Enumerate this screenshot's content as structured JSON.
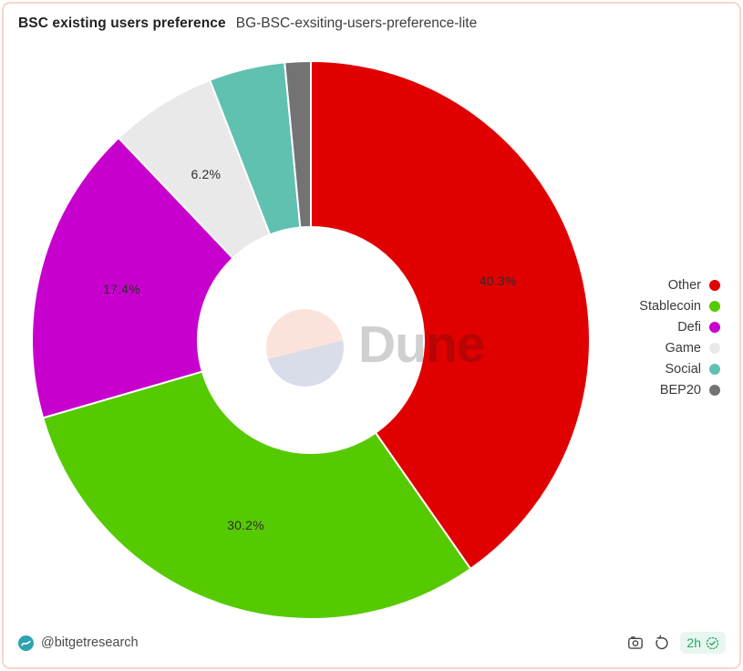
{
  "header": {
    "title": "BSC existing users preference",
    "subtitle": "BG-BSC-exsiting-users-preference-lite"
  },
  "chart_data": {
    "type": "pie",
    "donut": true,
    "title": "BSC existing users preference",
    "legend_position": "right",
    "start_angle_deg": 0,
    "clockwise": true,
    "categories": [
      "Other",
      "Stablecoin",
      "Defi",
      "Game",
      "Social",
      "BEP20"
    ],
    "values": [
      40.3,
      30.2,
      17.4,
      6.2,
      4.4,
      1.5
    ],
    "slices": [
      {
        "name": "Other",
        "value": 40.3,
        "label": "40.3%",
        "color": "#e10000"
      },
      {
        "name": "Stablecoin",
        "value": 30.2,
        "label": "30.2%",
        "color": "#56ca00"
      },
      {
        "name": "Defi",
        "value": 17.4,
        "label": "17.4%",
        "color": "#c800cd"
      },
      {
        "name": "Game",
        "value": 6.2,
        "label": "6.2%",
        "color": "#e9e9e9"
      },
      {
        "name": "Social",
        "value": 4.4,
        "label": "",
        "color": "#60c1b1"
      },
      {
        "name": "BEP20",
        "value": 1.5,
        "label": "",
        "color": "#737373"
      }
    ]
  },
  "watermark": {
    "text": "Dune"
  },
  "footer": {
    "handle": "@bitgetresearch",
    "age_badge": "2h",
    "icons": {
      "left": "bitget-avatar-icon",
      "camera": "camera-icon",
      "refresh": "refresh-icon",
      "badge": "verified-check-icon"
    }
  },
  "colors": {
    "card_border": "#f8d6ce",
    "badge_bg": "#e7f6ee",
    "badge_text": "#27a567",
    "avatar_bg": "#2da4b0",
    "watermark_pink": "#fbe3dc",
    "watermark_lavender": "#d9dce9"
  }
}
